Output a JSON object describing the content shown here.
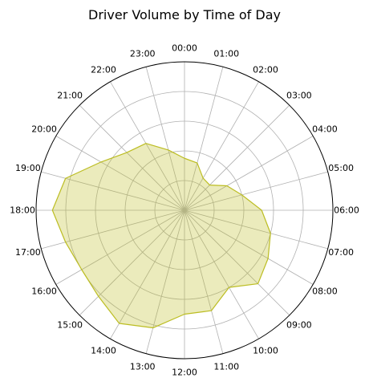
{
  "chart_data": {
    "type": "radar",
    "title": "Driver Volume by Time of Day",
    "categories": [
      "00:00",
      "01:00",
      "02:00",
      "03:00",
      "04:00",
      "05:00",
      "06:00",
      "07:00",
      "08:00",
      "09:00",
      "10:00",
      "11:00",
      "12:00",
      "13:00",
      "14:00",
      "15:00",
      "16:00",
      "17:00",
      "18:00",
      "19:00",
      "20:00",
      "21:00",
      "22:00",
      "23:00"
    ],
    "series": [
      {
        "values": [
          0.35,
          0.33,
          0.25,
          0.24,
          0.33,
          0.4,
          0.52,
          0.6,
          0.65,
          0.7,
          0.6,
          0.7,
          0.7,
          0.82,
          0.88,
          0.82,
          0.8,
          0.83,
          0.89,
          0.83,
          0.65,
          0.55,
          0.52,
          0.42
        ],
        "fill": "#bcbd22",
        "fill_opacity": 0.3,
        "stroke": "#bcbd22"
      }
    ],
    "rlim": [
      0,
      1
    ],
    "rings": [
      0.2,
      0.4,
      0.6,
      0.8
    ],
    "show_radial_tick_labels": false,
    "grid": true,
    "direction": "clockwise",
    "zero_location": "top"
  }
}
